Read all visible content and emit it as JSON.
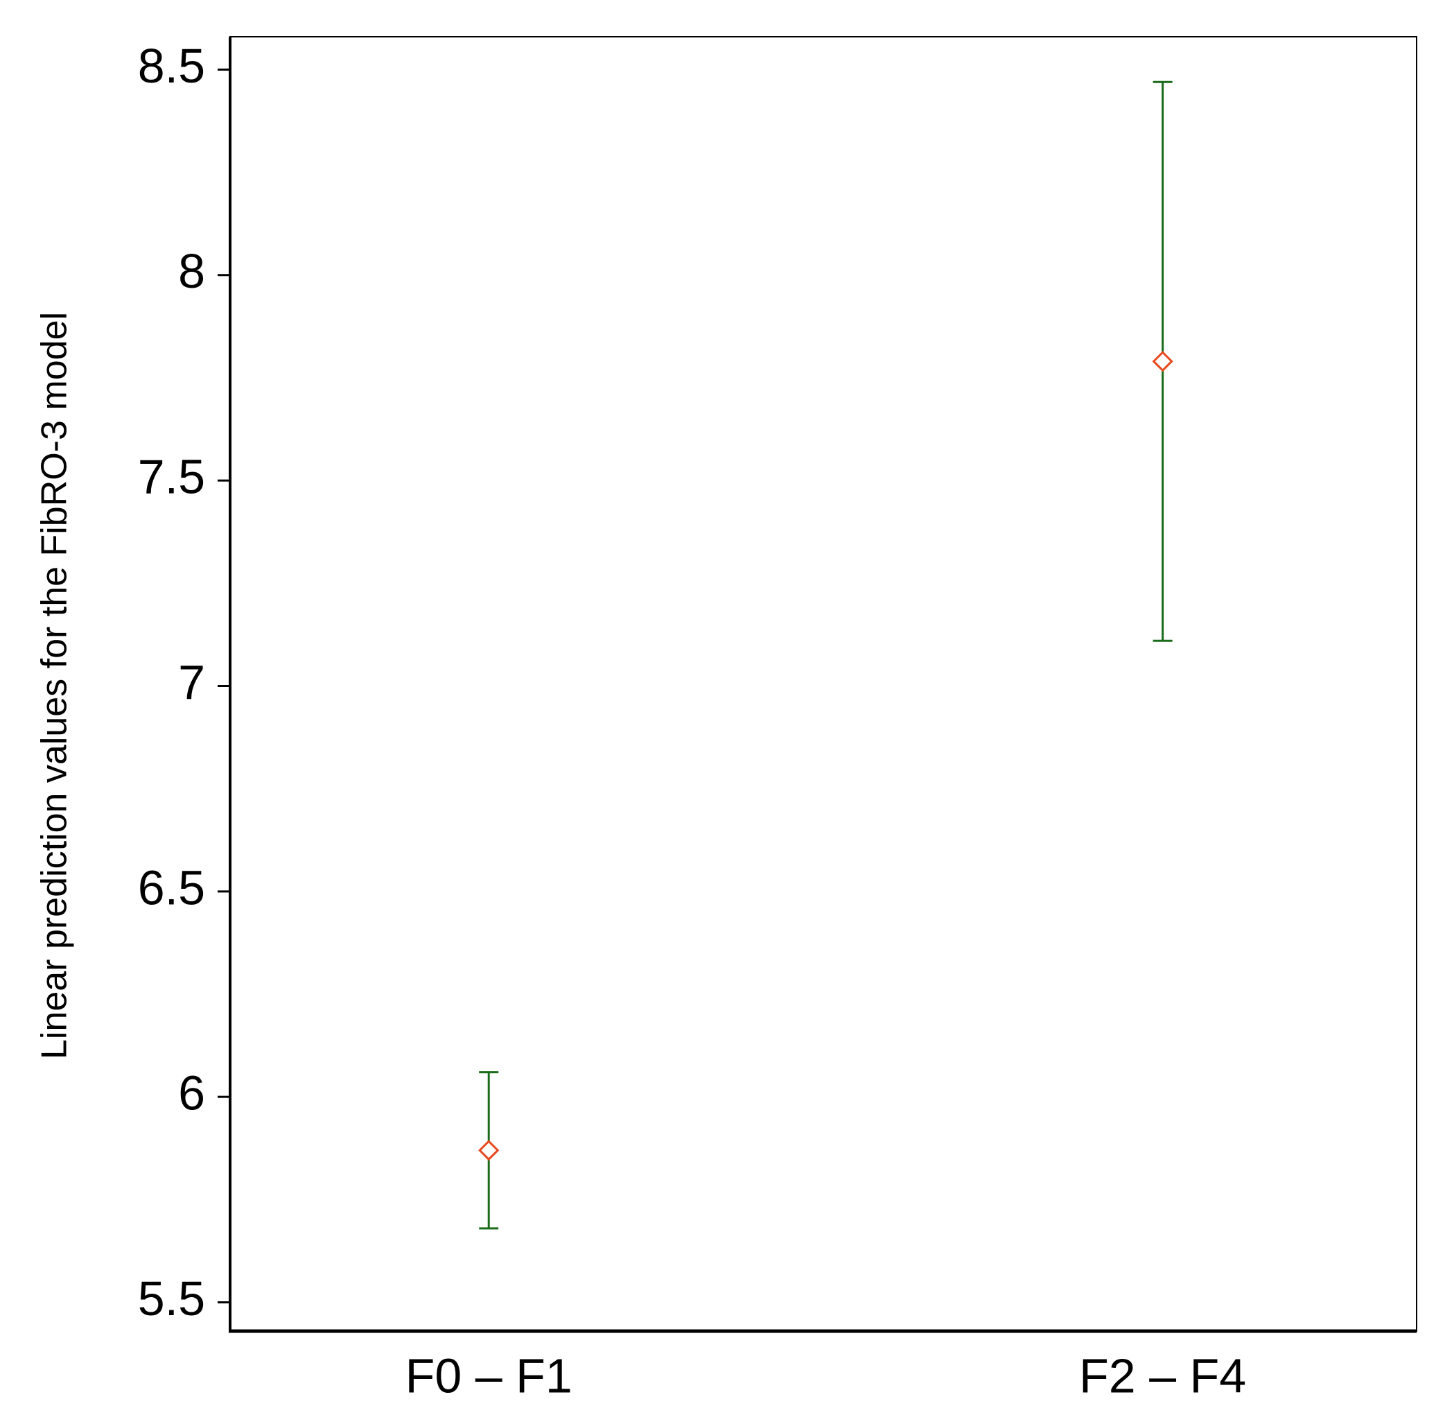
{
  "chart_data": {
    "type": "errorbar",
    "y_label": "Linear prediction values for the FibRO-3 model",
    "categories": [
      "F0 – F1",
      "F2 – F4"
    ],
    "series": [
      {
        "name": null,
        "color": "#e8491d",
        "error_color": "#1a6b1a",
        "values": [
          5.87,
          7.79
        ],
        "errors": [
          0.19,
          0.68
        ]
      }
    ],
    "ylim": [
      5.43,
      8.58
    ],
    "yticks": [
      5.5,
      6,
      6.5,
      7,
      7.5,
      8,
      8.5
    ],
    "grid": false
  }
}
